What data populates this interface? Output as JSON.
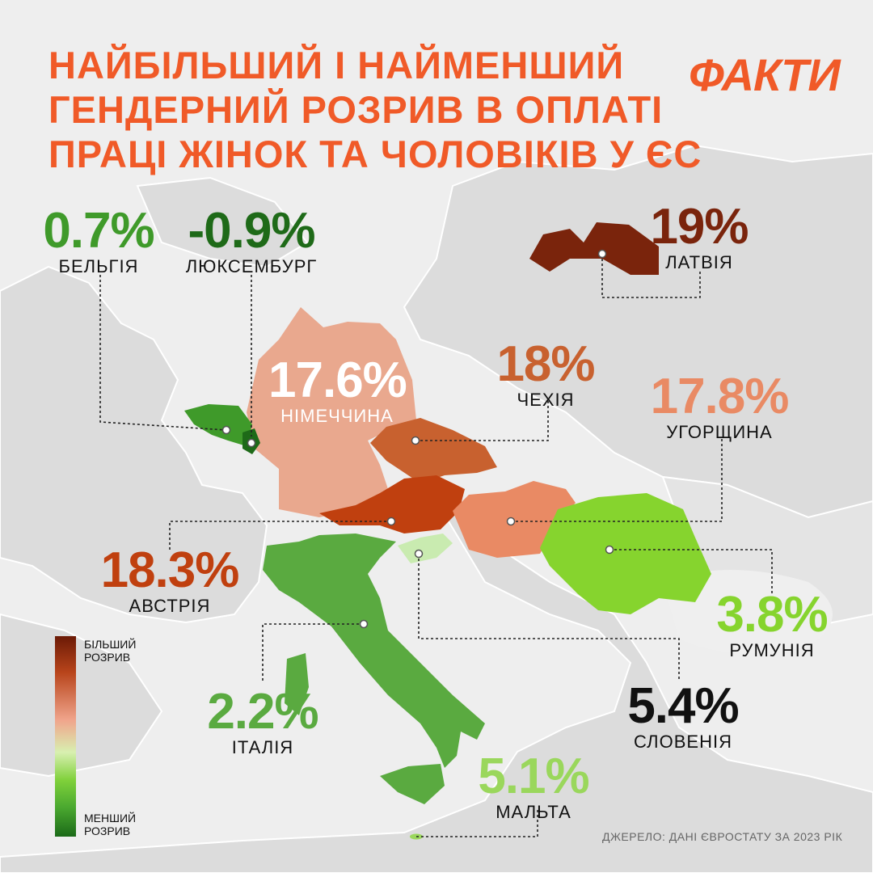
{
  "title": {
    "lines": [
      "НАЙБІЛЬШИЙ І НАЙМЕНШИЙ",
      "ГЕНДЕРНИЙ РОЗРИВ В ОПЛАТІ",
      "ПРАЦІ ЖІНОК ТА ЧОЛОВІКІВ У ЄС"
    ]
  },
  "brand": "ФАКТИ",
  "colors": {
    "accent": "#f05a28"
  },
  "countries": [
    {
      "id": "belgium",
      "name": "БЕЛЬГІЯ",
      "value": "0.7%",
      "color": "#3f9a2a"
    },
    {
      "id": "luxembourg",
      "name": "ЛЮКСЕМБУРГ",
      "value": "-0.9%",
      "color": "#1e6a18"
    },
    {
      "id": "latvia",
      "name": "ЛАТВІЯ",
      "value": "19%",
      "color": "#7a240c"
    },
    {
      "id": "germany",
      "name": "НІМЕЧЧИНА",
      "value": "17.6%",
      "color": "#e9a88e"
    },
    {
      "id": "czechia",
      "name": "ЧЕХІЯ",
      "value": "18%",
      "color": "#c8612f"
    },
    {
      "id": "hungary",
      "name": "УГОРЩИНА",
      "value": "17.8%",
      "color": "#e98a64"
    },
    {
      "id": "austria",
      "name": "АВСТРІЯ",
      "value": "18.3%",
      "color": "#c0400f"
    },
    {
      "id": "romania",
      "name": "РУМУНІЯ",
      "value": "3.8%",
      "color": "#86d42e"
    },
    {
      "id": "italy",
      "name": "ІТАЛІЯ",
      "value": "2.2%",
      "color": "#5aaa40"
    },
    {
      "id": "slovenia",
      "name": "СЛОВЕНІЯ",
      "value": "5.4%",
      "color": "#c9ebb0"
    },
    {
      "id": "malta",
      "name": "МАЛЬТА",
      "value": "5.1%",
      "color": "#9ad75c"
    }
  ],
  "legend": {
    "top": "БІЛЬШИЙ РОЗРИВ",
    "bottom": "МЕНШИЙ РОЗРИВ"
  },
  "source": "ДЖЕРЕЛО: ДАНІ ЄВРОСТАТУ ЗА 2023 РІК"
}
